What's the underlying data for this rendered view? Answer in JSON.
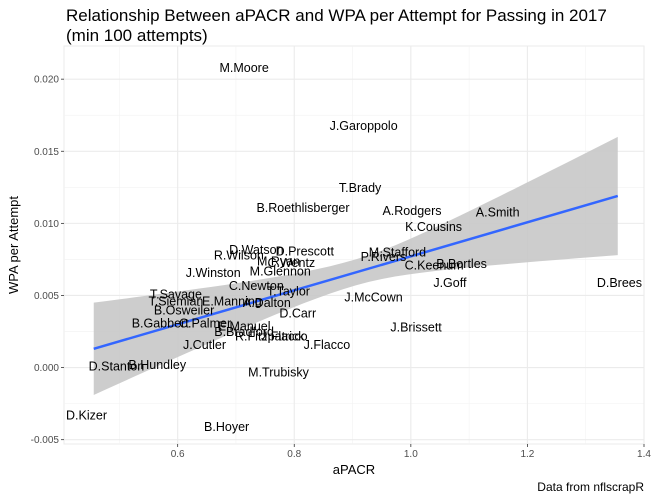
{
  "chart_data": {
    "type": "scatter",
    "title": "Relationship Between aPACR and WPA per Attempt for Passing in 2017 (min 100 attempts)",
    "title_lines": [
      "Relationship Between aPACR and WPA per Attempt for Passing in 2017",
      "(min 100 attempts)"
    ],
    "xlabel": "aPACR",
    "ylabel": "WPA per Attempt",
    "caption": "Data from nflscrapR",
    "xlim": [
      0.405,
      1.4
    ],
    "ylim": [
      -0.0053,
      0.0223
    ],
    "x_ticks": [
      0.6,
      0.8,
      1.0,
      1.2,
      1.4
    ],
    "x_tick_labels": [
      "0.6",
      "0.8",
      "1.0",
      "1.2",
      "1.4"
    ],
    "y_ticks": [
      -0.005,
      0.0,
      0.005,
      0.01,
      0.015,
      0.02
    ],
    "y_tick_labels": [
      "-0.005",
      "0.000",
      "0.005",
      "0.010",
      "0.015",
      "0.020"
    ],
    "grid": true,
    "points": [
      {
        "label": "M.Moore",
        "x": 0.714,
        "y": 0.0208
      },
      {
        "label": "J.Garoppolo",
        "x": 0.919,
        "y": 0.0168
      },
      {
        "label": "T.Brady",
        "x": 0.913,
        "y": 0.0125
      },
      {
        "label": "B.Roethlisberger",
        "x": 0.815,
        "y": 0.0111
      },
      {
        "label": "A.Rodgers",
        "x": 1.002,
        "y": 0.0109
      },
      {
        "label": "A.Smith",
        "x": 1.149,
        "y": 0.0108
      },
      {
        "label": "K.Cousins",
        "x": 1.039,
        "y": 0.0098
      },
      {
        "label": "D.Watson",
        "x": 0.735,
        "y": 0.0082
      },
      {
        "label": "D.Prescott",
        "x": 0.818,
        "y": 0.0081
      },
      {
        "label": "R.Wilson",
        "x": 0.705,
        "y": 0.0078
      },
      {
        "label": "M.Stafford",
        "x": 0.977,
        "y": 0.008
      },
      {
        "label": "P.Rivers",
        "x": 0.953,
        "y": 0.0077
      },
      {
        "label": "M.Ryan",
        "x": 0.773,
        "y": 0.0074
      },
      {
        "label": "C.Wentz",
        "x": 0.795,
        "y": 0.0073
      },
      {
        "label": "B.Bortles",
        "x": 1.087,
        "y": 0.0072
      },
      {
        "label": "C.Keenum",
        "x": 1.04,
        "y": 0.0071
      },
      {
        "label": "M.Glennon",
        "x": 0.776,
        "y": 0.0067
      },
      {
        "label": "J.Winston",
        "x": 0.661,
        "y": 0.0066
      },
      {
        "label": "J.Goff",
        "x": 1.067,
        "y": 0.0059
      },
      {
        "label": "D.Brees",
        "x": 1.397,
        "y": 0.0059
      },
      {
        "label": "C.Newton",
        "x": 0.735,
        "y": 0.0057
      },
      {
        "label": "T.Taylor",
        "x": 0.79,
        "y": 0.0053
      },
      {
        "label": "T.Savage",
        "x": 0.597,
        "y": 0.0051
      },
      {
        "label": "J.McCown",
        "x": 0.936,
        "y": 0.0049
      },
      {
        "label": "T.Siemian",
        "x": 0.597,
        "y": 0.0046
      },
      {
        "label": "E.Manning",
        "x": 0.693,
        "y": 0.0046
      },
      {
        "label": "A.Dalton",
        "x": 0.753,
        "y": 0.0045
      },
      {
        "label": "B.Osweiler",
        "x": 0.611,
        "y": 0.004
      },
      {
        "label": "D.Carr",
        "x": 0.806,
        "y": 0.0038
      },
      {
        "label": "B.Gabbert",
        "x": 0.57,
        "y": 0.0031
      },
      {
        "label": "C.Palmer",
        "x": 0.647,
        "y": 0.0031
      },
      {
        "label": "J.Brissett",
        "x": 1.009,
        "y": 0.0028
      },
      {
        "label": "E.Manuel",
        "x": 0.714,
        "y": 0.0029
      },
      {
        "label": "B.Bradford",
        "x": 0.714,
        "y": 0.0025
      },
      {
        "label": "R.Fitzpatrick",
        "x": 0.758,
        "y": 0.0022
      },
      {
        "label": "J.Flacco",
        "x": 0.783,
        "y": 0.0022
      },
      {
        "label": "J.Cutler",
        "x": 0.646,
        "y": 0.0016
      },
      {
        "label": "J.Flacco",
        "x": 0.856,
        "y": 0.0016
      },
      {
        "label": "B.Hundley",
        "x": 0.565,
        "y": 0.0002
      },
      {
        "label": "D.Stanton",
        "x": 0.495,
        "y": 0.0001
      },
      {
        "label": "M.Trubisky",
        "x": 0.773,
        "y": -0.0003
      },
      {
        "label": "D.Kizer",
        "x": 0.431,
        "y": -0.0033
      },
      {
        "label": "B.Hoyer",
        "x": 0.684,
        "y": -0.0041
      }
    ],
    "trend_line": {
      "x": [
        0.456,
        1.355
      ],
      "y": [
        0.0013,
        0.0119
      ],
      "color": "#3366ff"
    },
    "confidence_band": {
      "x": [
        0.456,
        1.355
      ],
      "upper": [
        0.0045,
        0.016
      ],
      "lower": [
        -0.0019,
        0.0078
      ],
      "color": "#c8c8c8"
    }
  }
}
